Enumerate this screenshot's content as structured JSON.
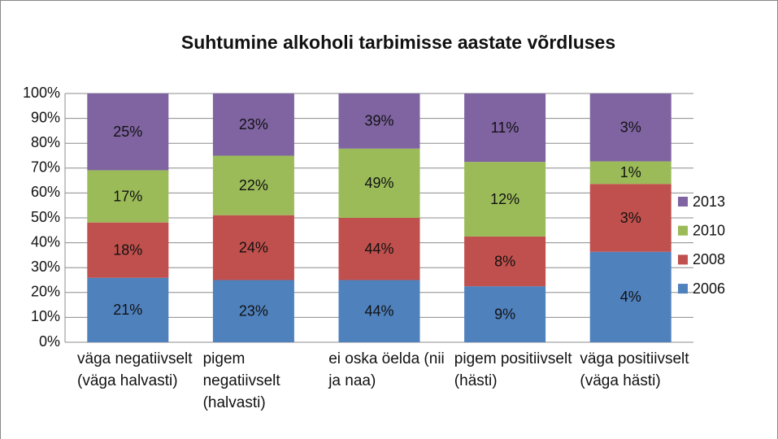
{
  "chart_data": {
    "type": "bar",
    "stacking": "percent",
    "title": "Suhtumine alkoholi tarbimisse aastate võrdluses",
    "categories": [
      "väga negatiivselt (väga halvasti)",
      "pigem negatiivselt (halvasti)",
      "ei oska öelda (nii ja naa)",
      "pigem positiivselt (hästi)",
      "väga positiivselt (väga hästi)"
    ],
    "series": [
      {
        "name": "2006",
        "color": "#4f81bd",
        "values": [
          21,
          23,
          44,
          9,
          4
        ],
        "value_labels": [
          "21%",
          "23%",
          "44%",
          "9%",
          "4%"
        ]
      },
      {
        "name": "2008",
        "color": "#c0504d",
        "values": [
          18,
          24,
          44,
          8,
          3
        ],
        "value_labels": [
          "18%",
          "24%",
          "44%",
          "8%",
          "3%"
        ]
      },
      {
        "name": "2010",
        "color": "#9bbb59",
        "values": [
          17,
          22,
          49,
          12,
          1
        ],
        "value_labels": [
          "17%",
          "22%",
          "49%",
          "12%",
          "1%"
        ]
      },
      {
        "name": "2013",
        "color": "#8064a2",
        "values": [
          25,
          23,
          39,
          11,
          3
        ],
        "value_labels": [
          "25%",
          "23%",
          "39%",
          "11%",
          "3%"
        ]
      }
    ],
    "ylim": [
      0,
      100
    ],
    "yticks": [
      {
        "value": 0,
        "label": "0%"
      },
      {
        "value": 10,
        "label": "10%"
      },
      {
        "value": 20,
        "label": "20%"
      },
      {
        "value": 30,
        "label": "30%"
      },
      {
        "value": 40,
        "label": "40%"
      },
      {
        "value": 50,
        "label": "50%"
      },
      {
        "value": 60,
        "label": "60%"
      },
      {
        "value": 70,
        "label": "70%"
      },
      {
        "value": 80,
        "label": "80%"
      },
      {
        "value": 90,
        "label": "90%"
      },
      {
        "value": 100,
        "label": "100%"
      }
    ],
    "grid": true,
    "legend": "right"
  }
}
